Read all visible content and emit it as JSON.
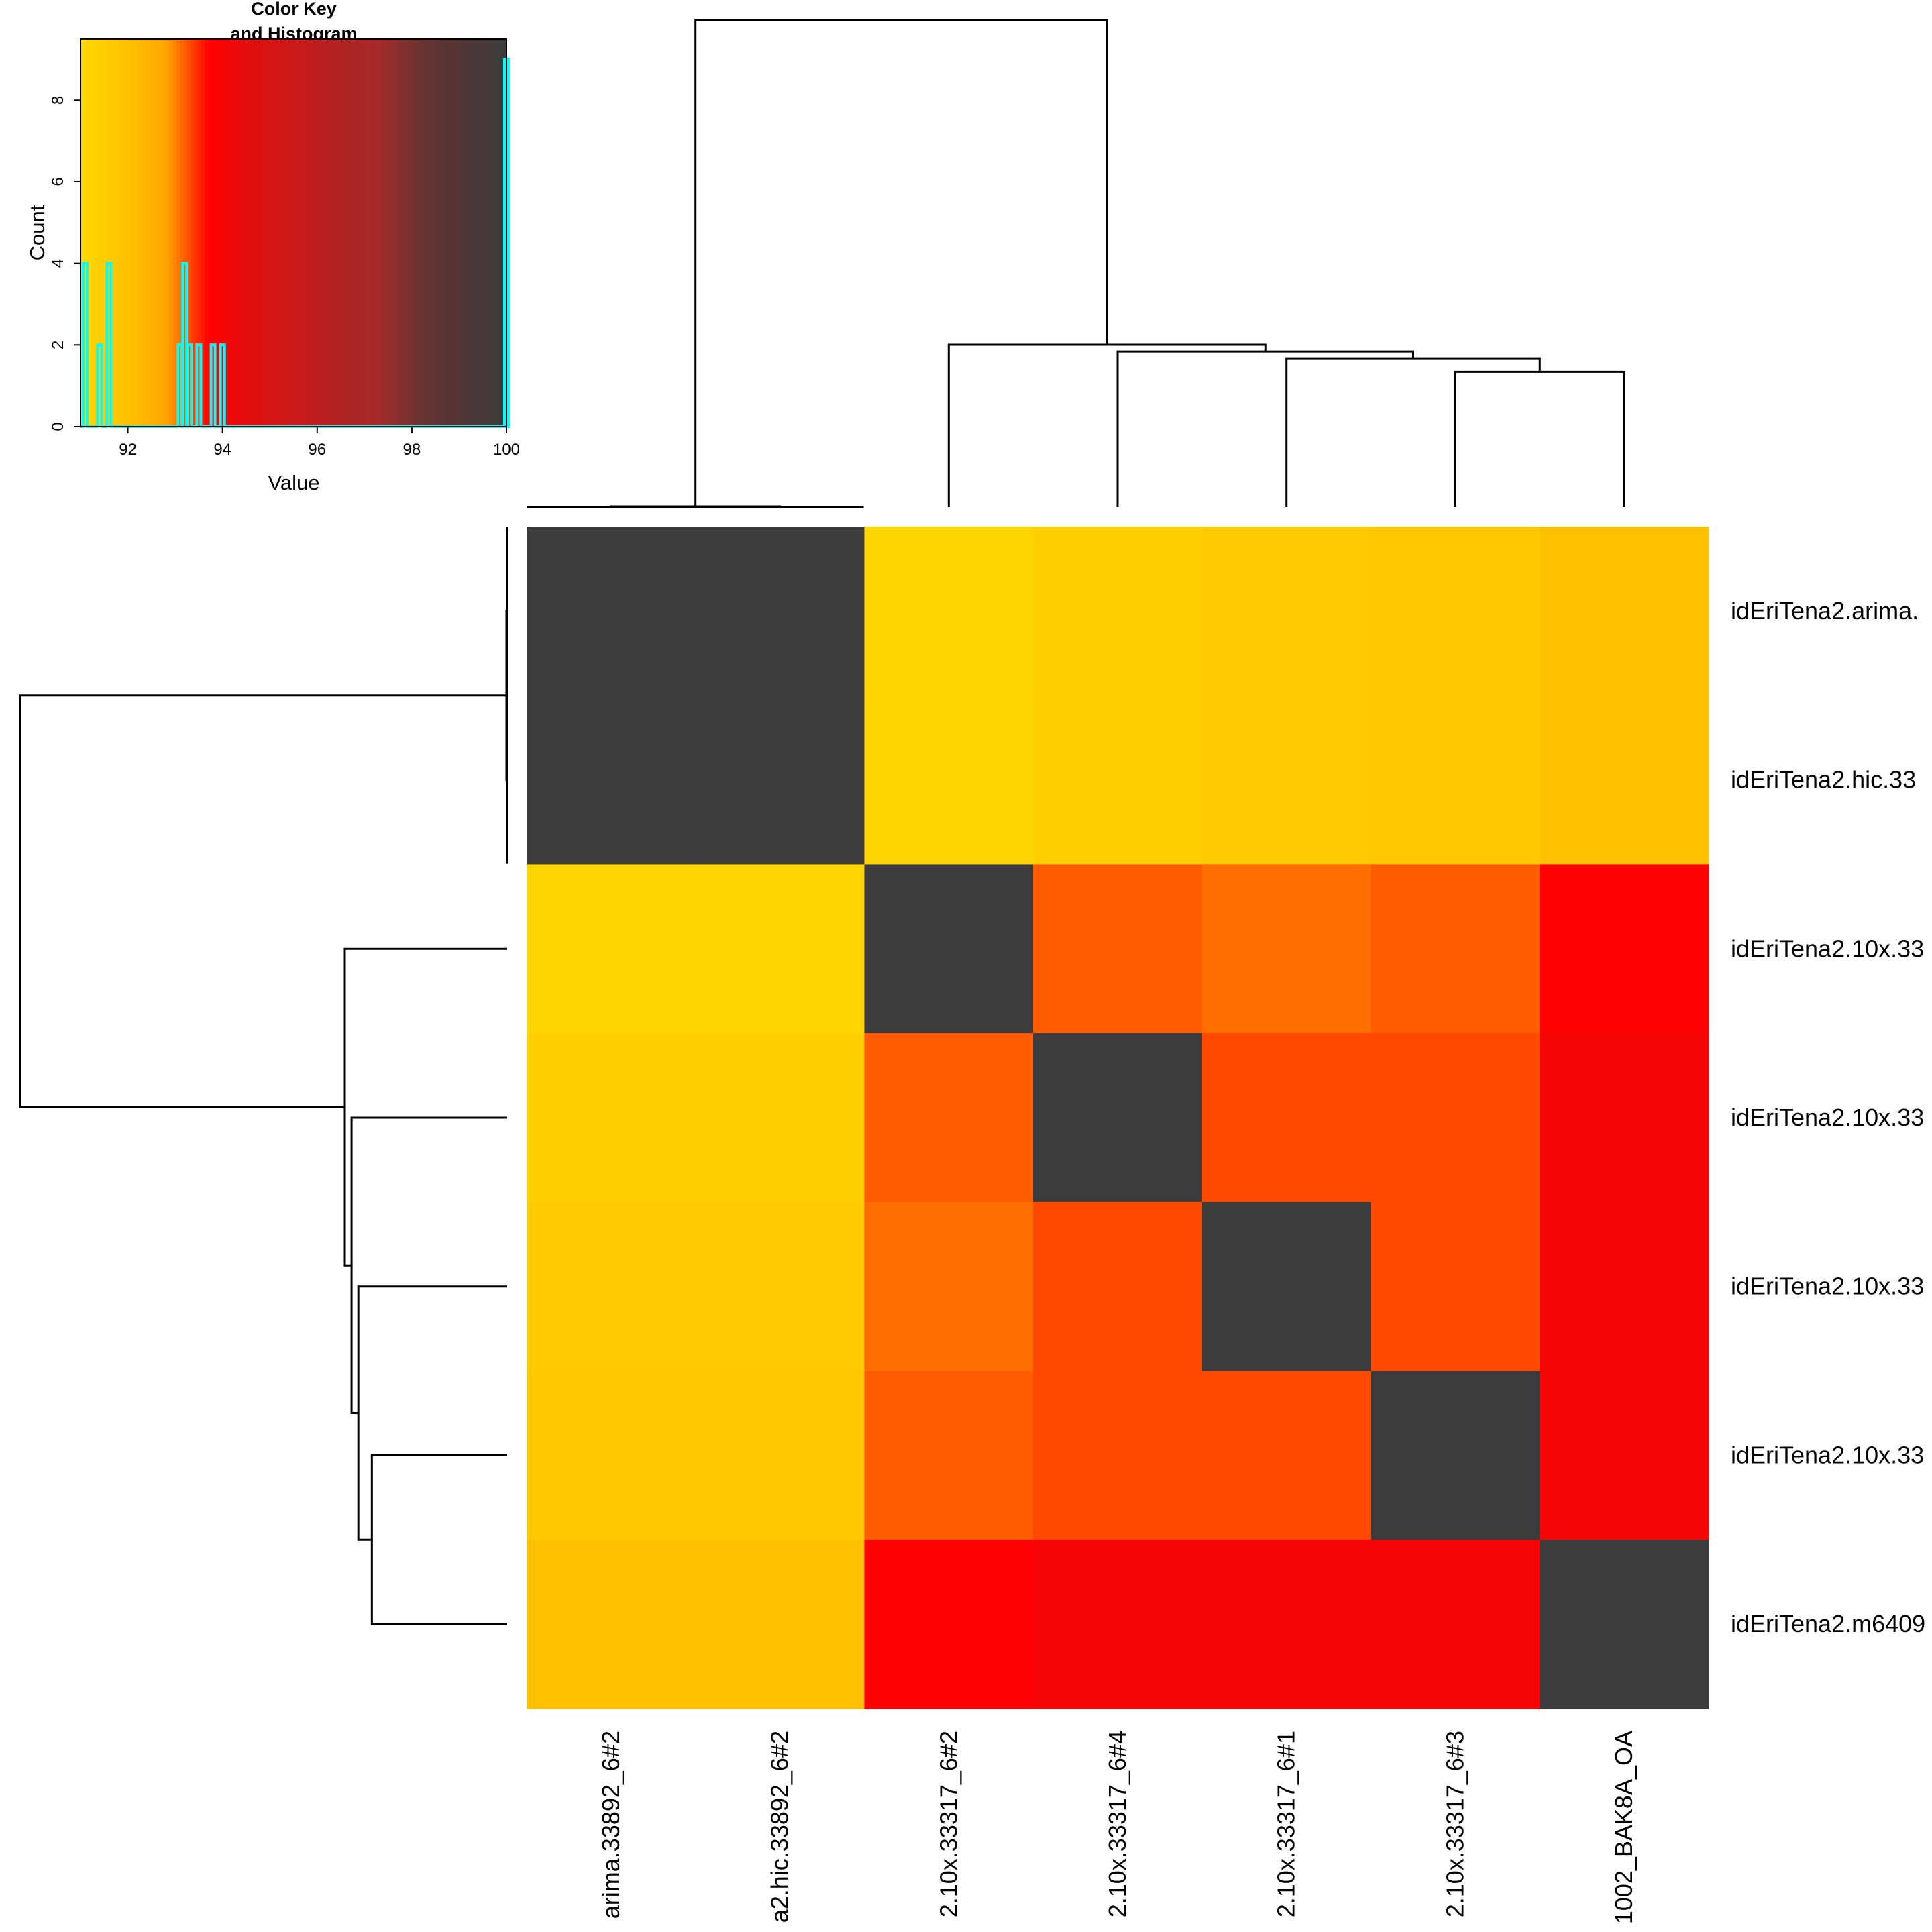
{
  "chart_data": [
    {
      "type": "heatmap",
      "title": "",
      "row_labels": [
        "idEriTena2.arima.",
        "idEriTena2.hic.33",
        "idEriTena2.10x.33",
        "idEriTena2.10x.33",
        "idEriTena2.10x.33",
        "idEriTena2.10x.33",
        "idEriTena2.m6409"
      ],
      "col_labels": [
        "arima.33892_6#2",
        "a2.hic.33892_6#2",
        "2.10x.33317_6#2",
        "2.10x.33317_6#4",
        "2.10x.33317_6#1",
        "2.10x.33317_6#3",
        "1002_BAK8A_OA"
      ],
      "values": [
        [
          100,
          100,
          91.1,
          91.4,
          91.6,
          91.7,
          92.0
        ],
        [
          100,
          100,
          91.1,
          91.4,
          91.6,
          91.7,
          92.0
        ],
        [
          91.1,
          91.1,
          100,
          93.2,
          93.1,
          93.2,
          93.8
        ],
        [
          91.4,
          91.4,
          93.2,
          100,
          93.3,
          93.3,
          94.0
        ],
        [
          91.6,
          91.6,
          93.1,
          93.3,
          100,
          93.3,
          94.0
        ],
        [
          91.7,
          91.7,
          93.2,
          93.3,
          93.3,
          100,
          94.0
        ],
        [
          92.0,
          92.0,
          93.8,
          94.0,
          94.0,
          94.0,
          100
        ]
      ],
      "dendrogram_order": [
        "a",
        "b",
        "c",
        "d",
        "e",
        "f",
        "g"
      ],
      "dendrogram_merges": [
        {
          "left": "a",
          "right": "b",
          "height": 0
        },
        {
          "left": "f",
          "right": "g",
          "height": 1
        },
        {
          "left": "e",
          "right": "fg",
          "height": 1.1
        },
        {
          "left": "d",
          "right": "efg",
          "height": 1.15
        },
        {
          "left": "c",
          "right": "defg",
          "height": 1.2
        },
        {
          "left": "ab",
          "right": "cdefg",
          "height": 3.6
        }
      ],
      "colors": {
        "cell_scale": [
          "#FFD700",
          "#FFC400",
          "#FFA500",
          "#FF0000",
          "#E01010",
          "#CC1A1A",
          "#B22222",
          "#A52A2A",
          "#6B3333",
          "#4F3535",
          "#3C3C3C"
        ],
        "histogram_line": "#00FFFF",
        "dendrogram": "#000000"
      }
    },
    {
      "type": "bar",
      "title": "Color Key\nand Histogram",
      "xlabel": "Value",
      "ylabel": "Count",
      "xlim": [
        91,
        100
      ],
      "ylim": [
        0,
        9.5
      ],
      "x_ticks": [
        "92",
        "94",
        "96",
        "98",
        "100"
      ],
      "y_ticks": [
        "0",
        "2",
        "4",
        "6",
        "8"
      ],
      "x": [
        91.1,
        91.4,
        91.6,
        93.1,
        93.2,
        93.3,
        93.5,
        93.8,
        94.0,
        100
      ],
      "values": [
        4,
        2,
        4,
        2,
        4,
        2,
        2,
        2,
        2,
        9
      ]
    }
  ],
  "labels": {
    "key_title_line1": "Color Key",
    "key_title_line2": "and Histogram",
    "key_xlabel": "Value",
    "key_ylabel": "Count"
  }
}
